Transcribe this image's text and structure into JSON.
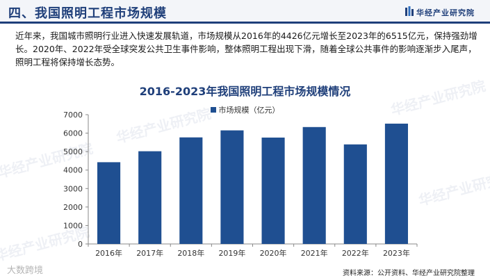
{
  "header": {
    "title": "四、我国照明工程市场规模",
    "brand": "华经产业研究院"
  },
  "paragraph": "近年来，我国城市照明行业进入快速发展轨道，市场规模从2016年的4426亿元增长至2023年的6515亿元，保持强劲增长。2020年、2022年受全球突发公共卫生事件影响，整体照明工程出现下滑，随着全球公共事件的影响逐渐步入尾声，照明工程将保持增长态势。",
  "watermarks": {
    "main": "华经产业研究院",
    "corner": "大数跨境"
  },
  "source": "资料来源：公开资料、华经产业研究院整理",
  "colors": {
    "accent": "#1f3f7a",
    "bar": "#1f4f91"
  },
  "chart_data": {
    "type": "bar",
    "title": "2016-2023年我国照明工程市场规模情况",
    "categories": [
      "2016年",
      "2017年",
      "2018年",
      "2019年",
      "2020年",
      "2021年",
      "2022年",
      "2023年"
    ],
    "series": [
      {
        "name": "市场规模（亿元）",
        "values": [
          4426,
          5020,
          5770,
          6150,
          5760,
          6330,
          5390,
          6515
        ]
      }
    ],
    "xlabel": "",
    "ylabel": "",
    "ylim": [
      0,
      7000
    ],
    "yticks": [
      0,
      1000,
      2000,
      3000,
      4000,
      5000,
      6000,
      7000
    ],
    "grid": false,
    "legend": "top-center"
  }
}
